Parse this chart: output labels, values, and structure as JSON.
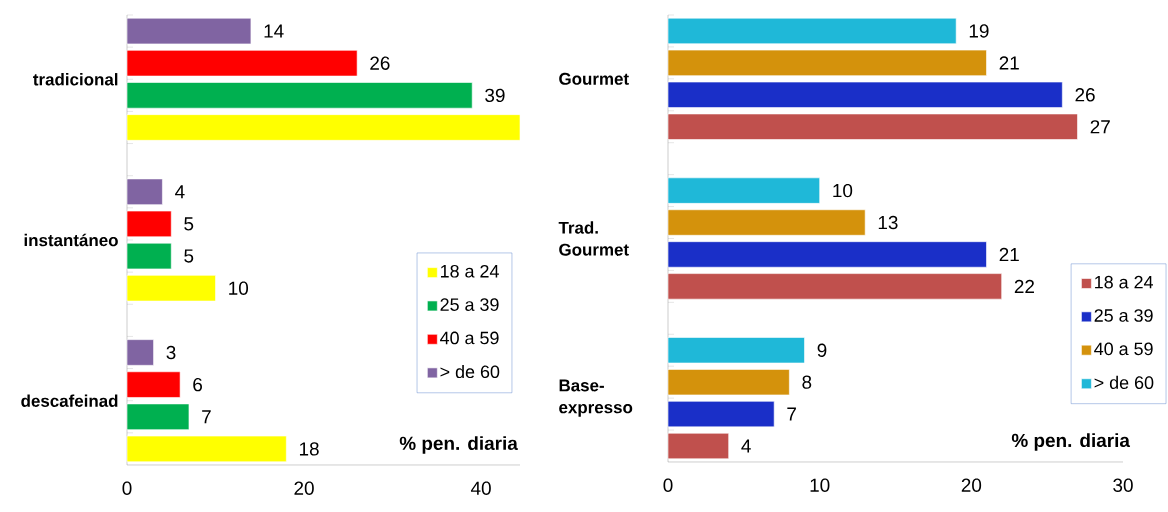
{
  "chart_data": [
    {
      "type": "bar",
      "orientation": "horizontal",
      "categories": [
        "tradicional",
        "instantáneo",
        "descafeinad"
      ],
      "xlim": [
        0,
        44.4
      ],
      "xticks": [
        0,
        20,
        40
      ],
      "legend": "right",
      "annotations": [
        "% pen. diaria"
      ],
      "series": [
        {
          "name": "18 a 24",
          "color": "#ffff00",
          "values": [
            44.4,
            10,
            18
          ],
          "value_labels": [
            null,
            "10",
            "18"
          ]
        },
        {
          "name": "25 a 39",
          "color": "#00b050",
          "values": [
            39,
            5,
            7
          ],
          "value_labels": [
            "39",
            "5",
            "7"
          ]
        },
        {
          "name": "40 a 59",
          "color": "#ff0000",
          "values": [
            26,
            5,
            6
          ],
          "value_labels": [
            "26",
            "5",
            "6"
          ]
        },
        {
          "name": "> de 60",
          "color": "#8064a2",
          "values": [
            14,
            4,
            3
          ],
          "value_labels": [
            "14",
            "4",
            "3"
          ]
        }
      ]
    },
    {
      "type": "bar",
      "orientation": "horizontal",
      "categories": [
        "Gourmet",
        "Trad. Gourmet",
        "Base-expresso"
      ],
      "xlim": [
        0,
        30
      ],
      "xticks": [
        0,
        10,
        20,
        30
      ],
      "legend": "right",
      "data_labels": true,
      "annotations": [
        "% pen. diaria"
      ],
      "series": [
        {
          "name": "18 a 24",
          "color": "#c0504d",
          "values": [
            27,
            22,
            4
          ]
        },
        {
          "name": "25 a 39",
          "color": "#1a2fc8",
          "values": [
            26,
            21,
            7
          ]
        },
        {
          "name": "40 a 59",
          "color": "#d4920c",
          "values": [
            21,
            13,
            8
          ]
        },
        {
          "name": "> de 60",
          "color": "#1fb8d8",
          "values": [
            19,
            10,
            9
          ]
        }
      ]
    }
  ]
}
